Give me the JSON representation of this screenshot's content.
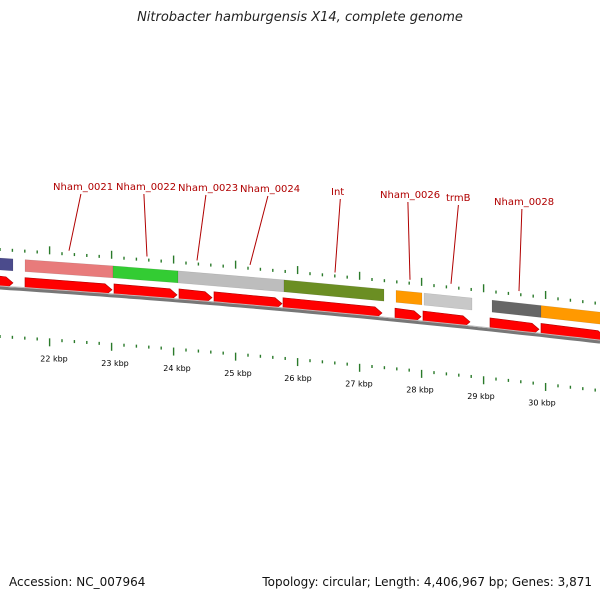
{
  "title": "Nitrobacter hamburgensis X14, complete genome",
  "accession": "Accession: NC_007964",
  "summary": "Topology: circular; Length: 4,406,967 bp; Genes: 3,871",
  "gene_labels": [
    "Nham_0021",
    "Nham_0022",
    "Nham_0023",
    "Nham_0024",
    "Int",
    "Nham_0026",
    "trmB",
    "Nham_0028"
  ],
  "kbp_labels": [
    "22 kbp",
    "23 kbp",
    "24 kbp",
    "25 kbp",
    "26 kbp",
    "27 kbp",
    "28 kbp",
    "29 kbp",
    "30 kbp"
  ],
  "colors": {
    "arrow": "#ff0000",
    "backbone": "#888888",
    "tick": "#2a7a2a",
    "label": "#b00000",
    "blocks": [
      "#4b4b8c",
      "#e87b7b",
      "#33cc33",
      "#bdbdbd",
      "#6b8e23",
      "#ff9900",
      "#c8c8c8",
      "#666666",
      "#ff9900"
    ]
  }
}
